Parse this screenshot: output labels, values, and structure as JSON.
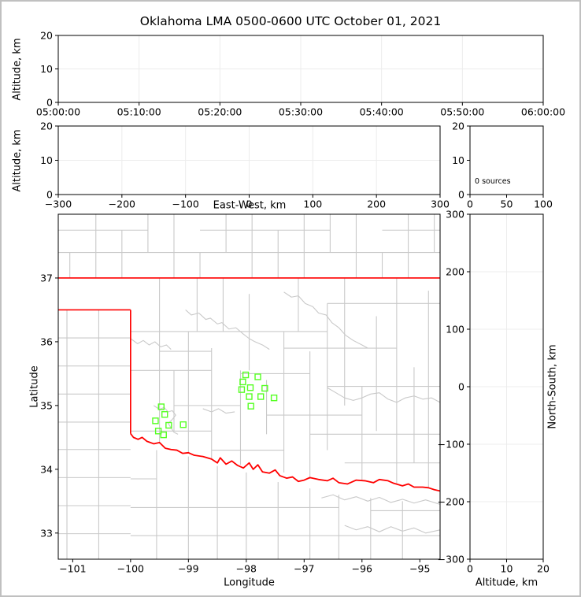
{
  "title": "Oklahoma LMA 0500-0600 UTC October 01, 2021",
  "colors": {
    "source_marker": "#55ff22",
    "state_border": "#ff0000",
    "county_line": "#c9c9c9",
    "grid_line": "#ececec",
    "axis": "#000000",
    "figure_border": "#c0c0c0",
    "background": "#ffffff"
  },
  "chart_data": [
    {
      "id": "time_height",
      "type": "scatter",
      "xlabel": "",
      "ylabel": "Altitude, km",
      "xlim": [
        0,
        3600
      ],
      "ylim": [
        0,
        20
      ],
      "xticks": [
        {
          "v": 0,
          "label": "05:00:00"
        },
        {
          "v": 600,
          "label": "05:10:00"
        },
        {
          "v": 1200,
          "label": "05:20:00"
        },
        {
          "v": 1800,
          "label": "05:30:00"
        },
        {
          "v": 2400,
          "label": "05:40:00"
        },
        {
          "v": 3000,
          "label": "05:50:00"
        },
        {
          "v": 3600,
          "label": "06:00:00"
        }
      ],
      "yticks": [
        {
          "v": 0,
          "label": "0"
        },
        {
          "v": 10,
          "label": "10"
        },
        {
          "v": 20,
          "label": "20"
        }
      ],
      "grid_x": [
        600,
        1200,
        1800,
        2400,
        3000
      ],
      "grid_y": [
        10
      ],
      "points": []
    },
    {
      "id": "ew_height",
      "type": "scatter",
      "xlabel": "East-West, km",
      "ylabel": "Altitude, km",
      "xlim": [
        -300,
        300
      ],
      "ylim": [
        0,
        20
      ],
      "xticks": [
        {
          "v": -300,
          "label": "−300"
        },
        {
          "v": -200,
          "label": "−200"
        },
        {
          "v": -100,
          "label": "−100"
        },
        {
          "v": 0,
          "label": "0"
        },
        {
          "v": 100,
          "label": "100"
        },
        {
          "v": 200,
          "label": "200"
        },
        {
          "v": 300,
          "label": "300"
        }
      ],
      "yticks": [
        {
          "v": 0,
          "label": "0"
        },
        {
          "v": 10,
          "label": "10"
        },
        {
          "v": 20,
          "label": "20"
        }
      ],
      "grid_x": [
        -200,
        -100,
        0,
        100,
        200
      ],
      "grid_y": [
        10
      ],
      "points": []
    },
    {
      "id": "source_histogram",
      "type": "bar",
      "xlabel": "",
      "ylabel": "",
      "annotation": "0 sources",
      "xlim": [
        0,
        100
      ],
      "ylim": [
        0,
        20
      ],
      "xticks": [
        {
          "v": 0,
          "label": "0"
        },
        {
          "v": 50,
          "label": "50"
        },
        {
          "v": 100,
          "label": "100"
        }
      ],
      "yticks": [
        {
          "v": 0,
          "label": "0"
        },
        {
          "v": 10,
          "label": "10"
        },
        {
          "v": 20,
          "label": "20"
        }
      ],
      "grid_x": [],
      "grid_y": [],
      "values": []
    },
    {
      "id": "plan_view_map",
      "type": "scatter",
      "xlabel": "Longitude",
      "ylabel": "Latitude",
      "xlim": [
        -101.25,
        -94.65
      ],
      "ylim": [
        32.59,
        38.0
      ],
      "xticks": [
        {
          "v": -101,
          "label": "−101"
        },
        {
          "v": -100,
          "label": "−100"
        },
        {
          "v": -99,
          "label": "−99"
        },
        {
          "v": -98,
          "label": "−98"
        },
        {
          "v": -97,
          "label": "−97"
        },
        {
          "v": -96,
          "label": "−96"
        },
        {
          "v": -95,
          "label": "−95"
        }
      ],
      "yticks": [
        {
          "v": 33,
          "label": "33"
        },
        {
          "v": 34,
          "label": "34"
        },
        {
          "v": 35,
          "label": "35"
        },
        {
          "v": 36,
          "label": "36"
        },
        {
          "v": 37,
          "label": "37"
        }
      ],
      "grid_x": [],
      "grid_y": [],
      "marker": "open-square",
      "points": [
        [
          -98.01,
          35.48
        ],
        [
          -97.8,
          35.45
        ],
        [
          -98.06,
          35.37
        ],
        [
          -97.93,
          35.28
        ],
        [
          -97.68,
          35.27
        ],
        [
          -98.08,
          35.25
        ],
        [
          -97.95,
          35.14
        ],
        [
          -97.75,
          35.14
        ],
        [
          -97.52,
          35.12
        ],
        [
          -97.92,
          34.99
        ],
        [
          -99.47,
          34.98
        ],
        [
          -99.41,
          34.86
        ],
        [
          -99.57,
          34.76
        ],
        [
          -99.34,
          34.69
        ],
        [
          -99.09,
          34.7
        ],
        [
          -99.52,
          34.6
        ],
        [
          -99.43,
          34.54
        ]
      ]
    },
    {
      "id": "ns_height",
      "type": "scatter",
      "xlabel": "Altitude, km",
      "ylabel": "North-South, km",
      "xlim": [
        0,
        20
      ],
      "ylim": [
        -300,
        300
      ],
      "xticks": [
        {
          "v": 0,
          "label": "0"
        },
        {
          "v": 10,
          "label": "10"
        },
        {
          "v": 20,
          "label": "20"
        }
      ],
      "yticks": [
        {
          "v": -300,
          "label": "−300"
        },
        {
          "v": -200,
          "label": "−200"
        },
        {
          "v": -100,
          "label": "−100"
        },
        {
          "v": 0,
          "label": "0"
        },
        {
          "v": 100,
          "label": "100"
        },
        {
          "v": 200,
          "label": "200"
        },
        {
          "v": 300,
          "label": "300"
        }
      ],
      "grid_x": [
        10
      ],
      "grid_y": [
        -200,
        -100,
        0,
        100,
        200
      ],
      "points": []
    }
  ],
  "map": {
    "state_border_segments": [
      [
        [
          -101.25,
          37.0
        ],
        [
          -94.65,
          37.0
        ]
      ],
      [
        [
          -101.25,
          36.5
        ],
        [
          -100.0,
          36.5
        ]
      ],
      [
        [
          -100.0,
          36.5
        ],
        [
          -100.0,
          34.56
        ]
      ]
    ],
    "red_river": [
      [
        -100.0,
        34.56
      ],
      [
        -99.95,
        34.5
      ],
      [
        -99.87,
        34.47
      ],
      [
        -99.8,
        34.5
      ],
      [
        -99.72,
        34.44
      ],
      [
        -99.6,
        34.4
      ],
      [
        -99.5,
        34.42
      ],
      [
        -99.4,
        34.33
      ],
      [
        -99.3,
        34.31
      ],
      [
        -99.2,
        34.3
      ],
      [
        -99.1,
        34.25
      ],
      [
        -99.0,
        34.26
      ],
      [
        -98.9,
        34.22
      ],
      [
        -98.75,
        34.2
      ],
      [
        -98.6,
        34.16
      ],
      [
        -98.5,
        34.1
      ],
      [
        -98.45,
        34.18
      ],
      [
        -98.35,
        34.08
      ],
      [
        -98.25,
        34.13
      ],
      [
        -98.15,
        34.06
      ],
      [
        -98.05,
        34.02
      ],
      [
        -97.95,
        34.1
      ],
      [
        -97.88,
        34.0
      ],
      [
        -97.8,
        34.07
      ],
      [
        -97.72,
        33.96
      ],
      [
        -97.6,
        33.94
      ],
      [
        -97.5,
        33.99
      ],
      [
        -97.42,
        33.9
      ],
      [
        -97.3,
        33.86
      ],
      [
        -97.2,
        33.88
      ],
      [
        -97.1,
        33.81
      ],
      [
        -97.0,
        33.83
      ],
      [
        -96.9,
        33.87
      ],
      [
        -96.75,
        33.84
      ],
      [
        -96.6,
        33.82
      ],
      [
        -96.5,
        33.86
      ],
      [
        -96.4,
        33.79
      ],
      [
        -96.25,
        33.77
      ],
      [
        -96.1,
        33.83
      ],
      [
        -95.95,
        33.82
      ],
      [
        -95.8,
        33.79
      ],
      [
        -95.7,
        33.84
      ],
      [
        -95.55,
        33.82
      ],
      [
        -95.45,
        33.78
      ],
      [
        -95.3,
        33.74
      ],
      [
        -95.2,
        33.77
      ],
      [
        -95.1,
        33.72
      ],
      [
        -94.95,
        33.72
      ],
      [
        -94.85,
        33.71
      ],
      [
        -94.75,
        33.68
      ],
      [
        -94.65,
        33.66
      ]
    ],
    "county_segments": [
      [
        -101.05,
        37.0,
        -101.05,
        37.4
      ],
      [
        -100.6,
        37.0,
        -100.6,
        38.0
      ],
      [
        -100.15,
        37.0,
        -100.15,
        37.75
      ],
      [
        -99.7,
        37.4,
        -99.7,
        38.0
      ],
      [
        -99.25,
        37.0,
        -99.25,
        38.0
      ],
      [
        -98.8,
        37.0,
        -98.8,
        37.4
      ],
      [
        -98.35,
        37.4,
        -98.35,
        38.0
      ],
      [
        -97.9,
        37.0,
        -97.9,
        38.0
      ],
      [
        -97.45,
        37.0,
        -97.45,
        37.75
      ],
      [
        -97.0,
        37.0,
        -97.0,
        38.0
      ],
      [
        -96.55,
        37.4,
        -96.55,
        38.0
      ],
      [
        -96.1,
        37.0,
        -96.1,
        38.0
      ],
      [
        -95.65,
        37.0,
        -95.65,
        37.4
      ],
      [
        -95.2,
        37.0,
        -95.2,
        38.0
      ],
      [
        -94.75,
        37.4,
        -94.75,
        38.0
      ],
      [
        -101.25,
        37.4,
        -94.65,
        37.4
      ],
      [
        -101.25,
        37.75,
        -99.7,
        37.75
      ],
      [
        -98.8,
        37.75,
        -96.55,
        37.75
      ],
      [
        -95.65,
        37.75,
        -94.65,
        37.75
      ],
      [
        -101.25,
        36.06,
        -100.0,
        36.06
      ],
      [
        -101.25,
        35.62,
        -100.0,
        35.62
      ],
      [
        -101.25,
        35.18,
        -100.0,
        35.18
      ],
      [
        -101.25,
        34.74,
        -100.0,
        34.74
      ],
      [
        -101.25,
        34.31,
        -100.0,
        34.31
      ],
      [
        -101.25,
        33.87,
        -100.0,
        33.87
      ],
      [
        -101.25,
        33.43,
        -100.0,
        33.43
      ],
      [
        -101.25,
        32.99,
        -100.0,
        32.99
      ],
      [
        -100.55,
        36.5,
        -100.55,
        32.59
      ],
      [
        -101.1,
        36.5,
        -101.1,
        32.59
      ],
      [
        -99.55,
        34.3,
        -99.55,
        32.59
      ],
      [
        -99.0,
        34.2,
        -99.0,
        32.59
      ],
      [
        -98.5,
        34.05,
        -98.5,
        32.59
      ],
      [
        -98.0,
        33.95,
        -98.0,
        32.59
      ],
      [
        -97.45,
        33.8,
        -97.45,
        32.59
      ],
      [
        -96.9,
        33.7,
        -96.9,
        32.59
      ],
      [
        -96.4,
        33.6,
        -96.4,
        32.59
      ],
      [
        -95.85,
        33.55,
        -95.85,
        32.59
      ],
      [
        -95.3,
        33.5,
        -95.3,
        32.59
      ],
      [
        -100.0,
        33.85,
        -99.55,
        33.85
      ],
      [
        -100.0,
        33.4,
        -96.4,
        33.4
      ],
      [
        -95.85,
        33.35,
        -94.65,
        33.35
      ],
      [
        -100.0,
        32.96,
        -94.65,
        32.96
      ],
      [
        -99.5,
        34.4,
        -99.5,
        37.0
      ],
      [
        -99.25,
        34.6,
        -99.25,
        35.55
      ],
      [
        -99.0,
        34.25,
        -99.0,
        36.16
      ],
      [
        -98.85,
        36.16,
        -98.85,
        37.0
      ],
      [
        -98.6,
        34.15,
        -98.6,
        35.9
      ],
      [
        -98.4,
        36.16,
        -98.4,
        37.0
      ],
      [
        -98.1,
        34.07,
        -98.1,
        35.55
      ],
      [
        -97.95,
        35.55,
        -97.95,
        36.75
      ],
      [
        -97.65,
        34.55,
        -97.65,
        35.4
      ],
      [
        -97.35,
        33.95,
        -97.35,
        36.16
      ],
      [
        -97.1,
        36.16,
        -97.1,
        37.0
      ],
      [
        -96.9,
        33.85,
        -96.9,
        35.85
      ],
      [
        -96.6,
        34.3,
        -96.6,
        36.6
      ],
      [
        -96.3,
        35.0,
        -96.3,
        37.0
      ],
      [
        -96.0,
        33.82,
        -96.0,
        35.3
      ],
      [
        -95.75,
        34.6,
        -95.75,
        36.4
      ],
      [
        -95.4,
        33.76,
        -95.4,
        37.0
      ],
      [
        -95.1,
        34.1,
        -95.1,
        35.6
      ],
      [
        -94.85,
        33.7,
        -94.85,
        36.8
      ],
      [
        -100.0,
        36.16,
        -96.6,
        36.16
      ],
      [
        -96.6,
        36.6,
        -94.65,
        36.6
      ],
      [
        -99.5,
        35.85,
        -98.6,
        35.85
      ],
      [
        -97.35,
        35.9,
        -95.4,
        35.9
      ],
      [
        -100.0,
        35.55,
        -98.6,
        35.55
      ],
      [
        -98.1,
        35.5,
        -96.9,
        35.5
      ],
      [
        -96.6,
        35.3,
        -94.65,
        35.3
      ],
      [
        -99.25,
        35.0,
        -98.1,
        35.0
      ],
      [
        -97.65,
        34.85,
        -96.0,
        34.85
      ],
      [
        -100.0,
        34.6,
        -98.6,
        34.6
      ],
      [
        -96.9,
        34.55,
        -94.65,
        34.55
      ],
      [
        -98.6,
        34.3,
        -97.35,
        34.3
      ],
      [
        -96.3,
        34.1,
        -94.65,
        34.1
      ]
    ],
    "county_wiggles": [
      [
        [
          -99.05,
          36.5
        ],
        [
          -98.95,
          36.42
        ],
        [
          -98.82,
          36.45
        ],
        [
          -98.7,
          36.35
        ],
        [
          -98.62,
          36.37
        ],
        [
          -98.5,
          36.28
        ],
        [
          -98.42,
          36.3
        ],
        [
          -98.3,
          36.2
        ],
        [
          -98.18,
          36.22
        ],
        [
          -98.05,
          36.12
        ],
        [
          -97.95,
          36.05
        ],
        [
          -97.85,
          36.0
        ],
        [
          -97.72,
          35.95
        ],
        [
          -97.6,
          35.88
        ]
      ],
      [
        [
          -100.0,
          36.05
        ],
        [
          -99.88,
          35.97
        ],
        [
          -99.78,
          36.02
        ],
        [
          -99.68,
          35.95
        ],
        [
          -99.58,
          36.0
        ],
        [
          -99.48,
          35.92
        ],
        [
          -99.38,
          35.95
        ],
        [
          -99.3,
          35.88
        ]
      ],
      [
        [
          -97.35,
          36.78
        ],
        [
          -97.22,
          36.7
        ],
        [
          -97.1,
          36.72
        ],
        [
          -96.98,
          36.6
        ],
        [
          -96.85,
          36.55
        ],
        [
          -96.75,
          36.45
        ],
        [
          -96.62,
          36.42
        ],
        [
          -96.52,
          36.3
        ],
        [
          -96.4,
          36.22
        ],
        [
          -96.28,
          36.1
        ],
        [
          -96.15,
          36.02
        ],
        [
          -96.0,
          35.95
        ],
        [
          -95.9,
          35.9
        ]
      ],
      [
        [
          -96.6,
          35.28
        ],
        [
          -96.45,
          35.2
        ],
        [
          -96.3,
          35.12
        ],
        [
          -96.15,
          35.08
        ],
        [
          -96.0,
          35.12
        ],
        [
          -95.85,
          35.18
        ],
        [
          -95.7,
          35.2
        ],
        [
          -95.55,
          35.1
        ],
        [
          -95.4,
          35.05
        ],
        [
          -95.25,
          35.12
        ],
        [
          -95.1,
          35.15
        ],
        [
          -94.95,
          35.1
        ],
        [
          -94.8,
          35.12
        ],
        [
          -94.65,
          35.05
        ]
      ],
      [
        [
          -99.6,
          35.0
        ],
        [
          -99.5,
          34.94
        ],
        [
          -99.42,
          34.97
        ],
        [
          -99.35,
          34.9
        ],
        [
          -99.28,
          34.92
        ],
        [
          -99.22,
          34.85
        ],
        [
          -99.28,
          34.78
        ],
        [
          -99.35,
          34.72
        ],
        [
          -99.3,
          34.65
        ],
        [
          -99.25,
          34.58
        ],
        [
          -99.18,
          34.55
        ]
      ],
      [
        [
          -98.75,
          34.95
        ],
        [
          -98.6,
          34.9
        ],
        [
          -98.48,
          34.95
        ],
        [
          -98.35,
          34.88
        ],
        [
          -98.2,
          34.9
        ]
      ],
      [
        [
          -96.7,
          33.55
        ],
        [
          -96.5,
          33.6
        ],
        [
          -96.3,
          33.52
        ],
        [
          -96.1,
          33.57
        ],
        [
          -95.9,
          33.5
        ],
        [
          -95.7,
          33.56
        ],
        [
          -95.5,
          33.48
        ],
        [
          -95.3,
          33.53
        ],
        [
          -95.1,
          33.47
        ],
        [
          -94.9,
          33.52
        ],
        [
          -94.65,
          33.45
        ]
      ],
      [
        [
          -96.3,
          33.12
        ],
        [
          -96.1,
          33.05
        ],
        [
          -95.9,
          33.1
        ],
        [
          -95.7,
          33.02
        ],
        [
          -95.5,
          33.1
        ],
        [
          -95.3,
          33.03
        ],
        [
          -95.1,
          33.08
        ],
        [
          -94.9,
          33.0
        ],
        [
          -94.65,
          33.05
        ]
      ]
    ]
  }
}
